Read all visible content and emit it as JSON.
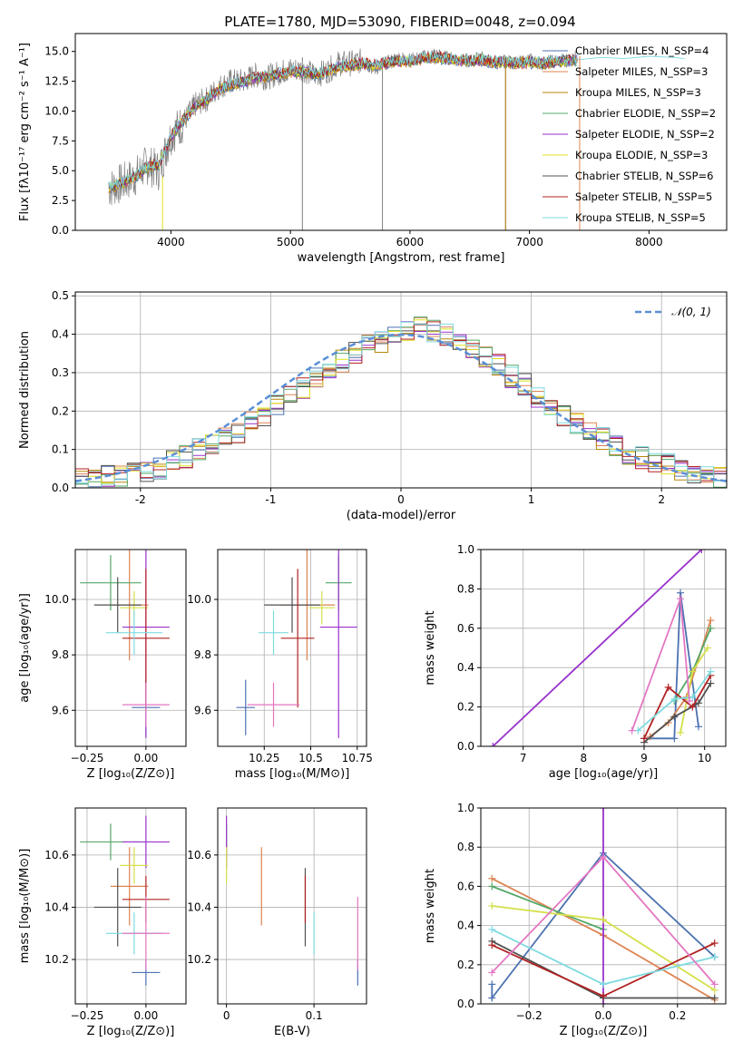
{
  "figure": {
    "title": "PLATE=1780, MJD=53090, FIBERID=0048, z=0.094"
  },
  "chart_data": [
    {
      "id": "spectrum",
      "type": "line",
      "title": "PLATE=1780, MJD=53090, FIBERID=0048, z=0.094",
      "xlabel": "wavelength [Angstrom, rest frame]",
      "ylabel": "Flux [fλ10⁻¹⁷ erg cm⁻² s⁻¹ A⁻¹]",
      "xlim": [
        3200,
        8650
      ],
      "ylim": [
        0,
        16.5
      ],
      "xticks": [
        4000,
        5000,
        6000,
        7000,
        8000
      ],
      "yticks": [
        0.0,
        2.5,
        5.0,
        7.5,
        10.0,
        12.5,
        15.0
      ],
      "grid": false,
      "legend_position": "top-right",
      "data_color": "#808080",
      "x": [
        3480,
        3600,
        3700,
        3800,
        3900,
        4000,
        4100,
        4200,
        4300,
        4400,
        4500,
        4600,
        4700,
        4800,
        4900,
        5000,
        5100,
        5200,
        5300,
        5400,
        5500,
        5600,
        5700,
        5800,
        5900,
        6000,
        6100,
        6200,
        6300,
        6400,
        6500,
        6600,
        6700,
        6800,
        6900,
        7000,
        7100,
        7200,
        7300,
        7400
      ],
      "data_flux": [
        3.5,
        4.0,
        4.5,
        5.5,
        5.0,
        8.0,
        9.0,
        10.5,
        11.0,
        12.0,
        12.5,
        12.5,
        13.0,
        12.8,
        13.2,
        13.5,
        13.5,
        13.0,
        13.3,
        14.0,
        14.0,
        14.2,
        13.5,
        14.0,
        14.5,
        14.3,
        14.5,
        14.8,
        14.5,
        14.3,
        14.2,
        14.5,
        14.0,
        14.2,
        14.0,
        14.3,
        14.0,
        14.2,
        14.3,
        14.5
      ],
      "model_flux": [
        3.6,
        4.0,
        4.5,
        5.3,
        5.5,
        7.8,
        9.2,
        10.3,
        11.0,
        11.8,
        12.2,
        12.4,
        12.8,
        12.9,
        13.1,
        13.3,
        13.3,
        13.1,
        13.3,
        13.7,
        13.8,
        14.0,
        13.8,
        14.0,
        14.2,
        14.2,
        14.4,
        14.5,
        14.4,
        14.3,
        14.2,
        14.3,
        14.1,
        14.1,
        14.0,
        14.1,
        14.0,
        14.1,
        14.2,
        14.3
      ],
      "vlines": [
        5100,
        5770,
        6800
      ],
      "masked_ranges": [
        [
          3700,
          3780
        ],
        [
          7420,
          7440
        ]
      ],
      "extra_model_x": [
        7400,
        7600,
        7800,
        8000,
        8200,
        8300
      ],
      "extra_model_flux": [
        14.3,
        14.5,
        14.4,
        14.6,
        14.5,
        14.4
      ],
      "series": [
        {
          "name": "Chabrier MILES, N_SSP=4",
          "color": "#4c72b0"
        },
        {
          "name": "Salpeter MILES, N_SSP=3",
          "color": "#dd8452"
        },
        {
          "name": "Kroupa MILES, N_SSP=3",
          "color": "#b8860b"
        },
        {
          "name": "Chabrier ELODIE, N_SSP=2",
          "color": "#55a868"
        },
        {
          "name": "Salpeter ELODIE, N_SSP=2",
          "color": "#9932cc"
        },
        {
          "name": "Kroupa ELODIE, N_SSP=3",
          "color": "#e0e020"
        },
        {
          "name": "Chabrier STELIB, N_SSP=6",
          "color": "#505050"
        },
        {
          "name": "Salpeter STELIB, N_SSP=5",
          "color": "#b22222"
        },
        {
          "name": "Kroupa STELIB, N_SSP=5",
          "color": "#7fdbe0"
        }
      ]
    },
    {
      "id": "residuals",
      "type": "histogram",
      "xlabel": "(data-model)/error",
      "ylabel": "Normed distribution",
      "xlim": [
        -2.5,
        2.5
      ],
      "ylim": [
        0,
        0.51
      ],
      "xticks": [
        -2,
        -1,
        0,
        1,
        2
      ],
      "yticks": [
        0.0,
        0.1,
        0.2,
        0.3,
        0.4,
        0.5
      ],
      "grid": true,
      "legend_position": "top-right",
      "legend": "𝒩(0, 1)",
      "bin_width": 0.1,
      "bin_start": -2.5,
      "base_density": [
        0.02,
        0.02,
        0.03,
        0.03,
        0.04,
        0.04,
        0.05,
        0.07,
        0.08,
        0.1,
        0.11,
        0.13,
        0.14,
        0.17,
        0.19,
        0.22,
        0.24,
        0.26,
        0.29,
        0.31,
        0.33,
        0.35,
        0.37,
        0.38,
        0.4,
        0.41,
        0.42,
        0.41,
        0.4,
        0.38,
        0.36,
        0.34,
        0.32,
        0.29,
        0.27,
        0.24,
        0.22,
        0.19,
        0.17,
        0.15,
        0.13,
        0.11,
        0.09,
        0.08,
        0.07,
        0.06,
        0.05,
        0.04,
        0.03,
        0.03
      ],
      "gaussian_color": "#5b8fd6"
    },
    {
      "id": "age-vs-Z",
      "type": "scatter",
      "xlabel": "Z [log₁₀(Z/Z⊙)]",
      "ylabel": "age  [log₁₀(age/yr)]",
      "xlim": [
        -0.3,
        0.17
      ],
      "ylim": [
        9.47,
        10.18
      ],
      "xticks": [
        -0.25,
        0.0
      ],
      "xticklabels": [
        "−0.25",
        "0.00"
      ],
      "yticks": [
        9.6,
        9.8,
        10.0
      ],
      "grid": true
    },
    {
      "id": "age-vs-mass",
      "type": "scatter",
      "xlabel": "mass [log₁₀(M/M⊙)]",
      "ylabel": "",
      "xlim": [
        10.0,
        10.8
      ],
      "ylim": [
        9.47,
        10.18
      ],
      "xticks": [
        10.25,
        10.5,
        10.75
      ],
      "yticks": [
        9.6,
        9.8,
        10.0
      ],
      "grid": true
    },
    {
      "id": "weight-vs-age",
      "type": "line",
      "xlabel": "age  [log₁₀(age/yr)]",
      "ylabel": "mass weight",
      "xlim": [
        6.3,
        10.35
      ],
      "ylim": [
        0,
        1
      ],
      "xticks": [
        7,
        8,
        9,
        10
      ],
      "yticks": [
        0.0,
        0.2,
        0.4,
        0.6,
        0.8,
        1.0
      ],
      "grid": true
    },
    {
      "id": "mass-vs-Z",
      "type": "scatter",
      "xlabel": "Z [log₁₀(Z/Z⊙)]",
      "ylabel": "mass [log₁₀(M/M⊙)]",
      "xlim": [
        -0.3,
        0.17
      ],
      "ylim": [
        10.03,
        10.78
      ],
      "xticks": [
        -0.25,
        0.0
      ],
      "xticklabels": [
        "−0.25",
        "0.00"
      ],
      "yticks": [
        10.2,
        10.4,
        10.6
      ],
      "grid": true
    },
    {
      "id": "mass-vs-ebv",
      "type": "scatter",
      "xlabel": "E(B-V)",
      "ylabel": "",
      "xlim": [
        -0.01,
        0.16
      ],
      "ylim": [
        10.03,
        10.78
      ],
      "xticks": [
        0.0,
        0.1
      ],
      "yticks": [
        10.2,
        10.4,
        10.6
      ],
      "grid": true
    },
    {
      "id": "weight-vs-Z",
      "type": "line",
      "xlabel": "Z [log₁₀(Z/Z⊙)]",
      "ylabel": "mass weight",
      "xlim": [
        -0.33,
        0.33
      ],
      "ylim": [
        0,
        1
      ],
      "xticks": [
        -0.2,
        0.0,
        0.2
      ],
      "xticklabels": [
        "−0.2",
        "0.0",
        "0.2"
      ],
      "yticks": [
        0.0,
        0.2,
        0.4,
        0.6,
        0.8,
        1.0
      ],
      "grid": true
    }
  ],
  "fits": [
    {
      "color": "#4c72b0",
      "Z": [
        0.0,
        0.06
      ],
      "age": [
        9.61,
        0.0
      ],
      "mass": [
        10.15,
        0.05
      ],
      "ebv": [
        0.15,
        0.0
      ],
      "age_w": [
        [
          9.0,
          0.04
        ],
        [
          9.5,
          0.04
        ],
        [
          9.6,
          0.78
        ],
        [
          9.9,
          0.1
        ]
      ],
      "z_w": [
        [
          -0.3,
          0.1
        ],
        [
          -0.3,
          0.03
        ],
        [
          0.0,
          0.77
        ],
        [
          0.3,
          0.24
        ]
      ]
    },
    {
      "color": "#dd8452",
      "Z": [
        -0.07,
        0.08
      ],
      "age": [
        9.98,
        0.2
      ],
      "mass": [
        10.48,
        0.15
      ],
      "ebv": [
        0.04,
        0.0
      ],
      "age_w": [
        [
          9.1,
          0.05
        ],
        [
          9.4,
          0.12
        ],
        [
          9.7,
          0.25
        ],
        [
          10.1,
          0.64
        ]
      ],
      "z_w": [
        [
          -0.3,
          0.64
        ],
        [
          0.0,
          0.35
        ],
        [
          0.3,
          0.02
        ]
      ]
    },
    {
      "color": "#55a868",
      "Z": [
        -0.15,
        0.13
      ],
      "age": [
        10.06,
        0.1
      ],
      "mass": [
        10.65,
        0.07
      ],
      "ebv": [
        0.0,
        0.0
      ],
      "age_w": [
        [
          9.5,
          0.23
        ],
        [
          9.8,
          0.38
        ],
        [
          10.1,
          0.6
        ]
      ],
      "z_w": [
        [
          -0.3,
          0.6
        ],
        [
          0.0,
          0.38
        ]
      ]
    },
    {
      "color": "#9932cc",
      "Z": [
        0.0,
        0.1
      ],
      "age": [
        9.9,
        0.4
      ],
      "mass": [
        10.65,
        0.1
      ],
      "ebv": [
        0.0,
        0.0
      ],
      "age_w": [
        [
          6.5,
          0.0
        ],
        [
          9.95,
          1.0
        ]
      ],
      "z_w": [
        [
          0.0,
          0.0
        ],
        [
          0.0,
          1.0
        ]
      ]
    },
    {
      "color": "#d4e04a",
      "Z": [
        -0.05,
        0.06
      ],
      "age": [
        9.97,
        0.06
      ],
      "mass": [
        10.56,
        0.07
      ],
      "ebv": [
        0.0,
        0.0
      ],
      "age_w": [
        [
          9.6,
          0.07
        ],
        [
          9.8,
          0.38
        ],
        [
          10.05,
          0.5
        ]
      ],
      "z_w": [
        [
          -0.3,
          0.5
        ],
        [
          0.0,
          0.43
        ],
        [
          0.3,
          0.07
        ]
      ]
    },
    {
      "color": "#505050",
      "Z": [
        -0.12,
        0.1
      ],
      "age": [
        9.98,
        0.1
      ],
      "mass": [
        10.4,
        0.15
      ],
      "ebv": [
        0.09,
        0.0
      ],
      "age_w": [
        [
          9.0,
          0.02
        ],
        [
          9.5,
          0.15
        ],
        [
          9.9,
          0.22
        ],
        [
          10.1,
          0.32
        ]
      ],
      "z_w": [
        [
          -0.3,
          0.32
        ],
        [
          0.0,
          0.03
        ],
        [
          0.3,
          0.03
        ]
      ]
    },
    {
      "color": "#b22222",
      "Z": [
        0.0,
        0.1
      ],
      "age": [
        9.86,
        0.25
      ],
      "mass": [
        10.43,
        0.09
      ],
      "ebv": [
        0.09,
        0.0
      ],
      "age_w": [
        [
          9.0,
          0.04
        ],
        [
          9.4,
          0.3
        ],
        [
          9.8,
          0.2
        ],
        [
          10.1,
          0.36
        ]
      ],
      "z_w": [
        [
          -0.3,
          0.3
        ],
        [
          0.0,
          0.04
        ],
        [
          0.3,
          0.31
        ]
      ]
    },
    {
      "color": "#7fdbe0",
      "Z": [
        -0.05,
        0.12
      ],
      "age": [
        9.88,
        0.08
      ],
      "mass": [
        10.3,
        0.08
      ],
      "ebv": [
        0.1,
        0.0
      ],
      "age_w": [
        [
          8.9,
          0.08
        ],
        [
          9.5,
          0.24
        ],
        [
          9.8,
          0.25
        ],
        [
          10.1,
          0.38
        ]
      ],
      "z_w": [
        [
          -0.3,
          0.38
        ],
        [
          0.0,
          0.1
        ],
        [
          0.3,
          0.24
        ]
      ]
    },
    {
      "color": "#e377c2",
      "Z": [
        0.0,
        0.1
      ],
      "age": [
        9.62,
        0.08
      ],
      "mass": [
        10.3,
        0.14
      ],
      "ebv": [
        0.15,
        0.0
      ],
      "age_w": [
        [
          8.8,
          0.08
        ],
        [
          9.6,
          0.75
        ],
        [
          9.75,
          0.23
        ]
      ],
      "z_w": [
        [
          -0.3,
          0.16
        ],
        [
          0.0,
          0.75
        ],
        [
          0.3,
          0.1
        ]
      ]
    }
  ]
}
